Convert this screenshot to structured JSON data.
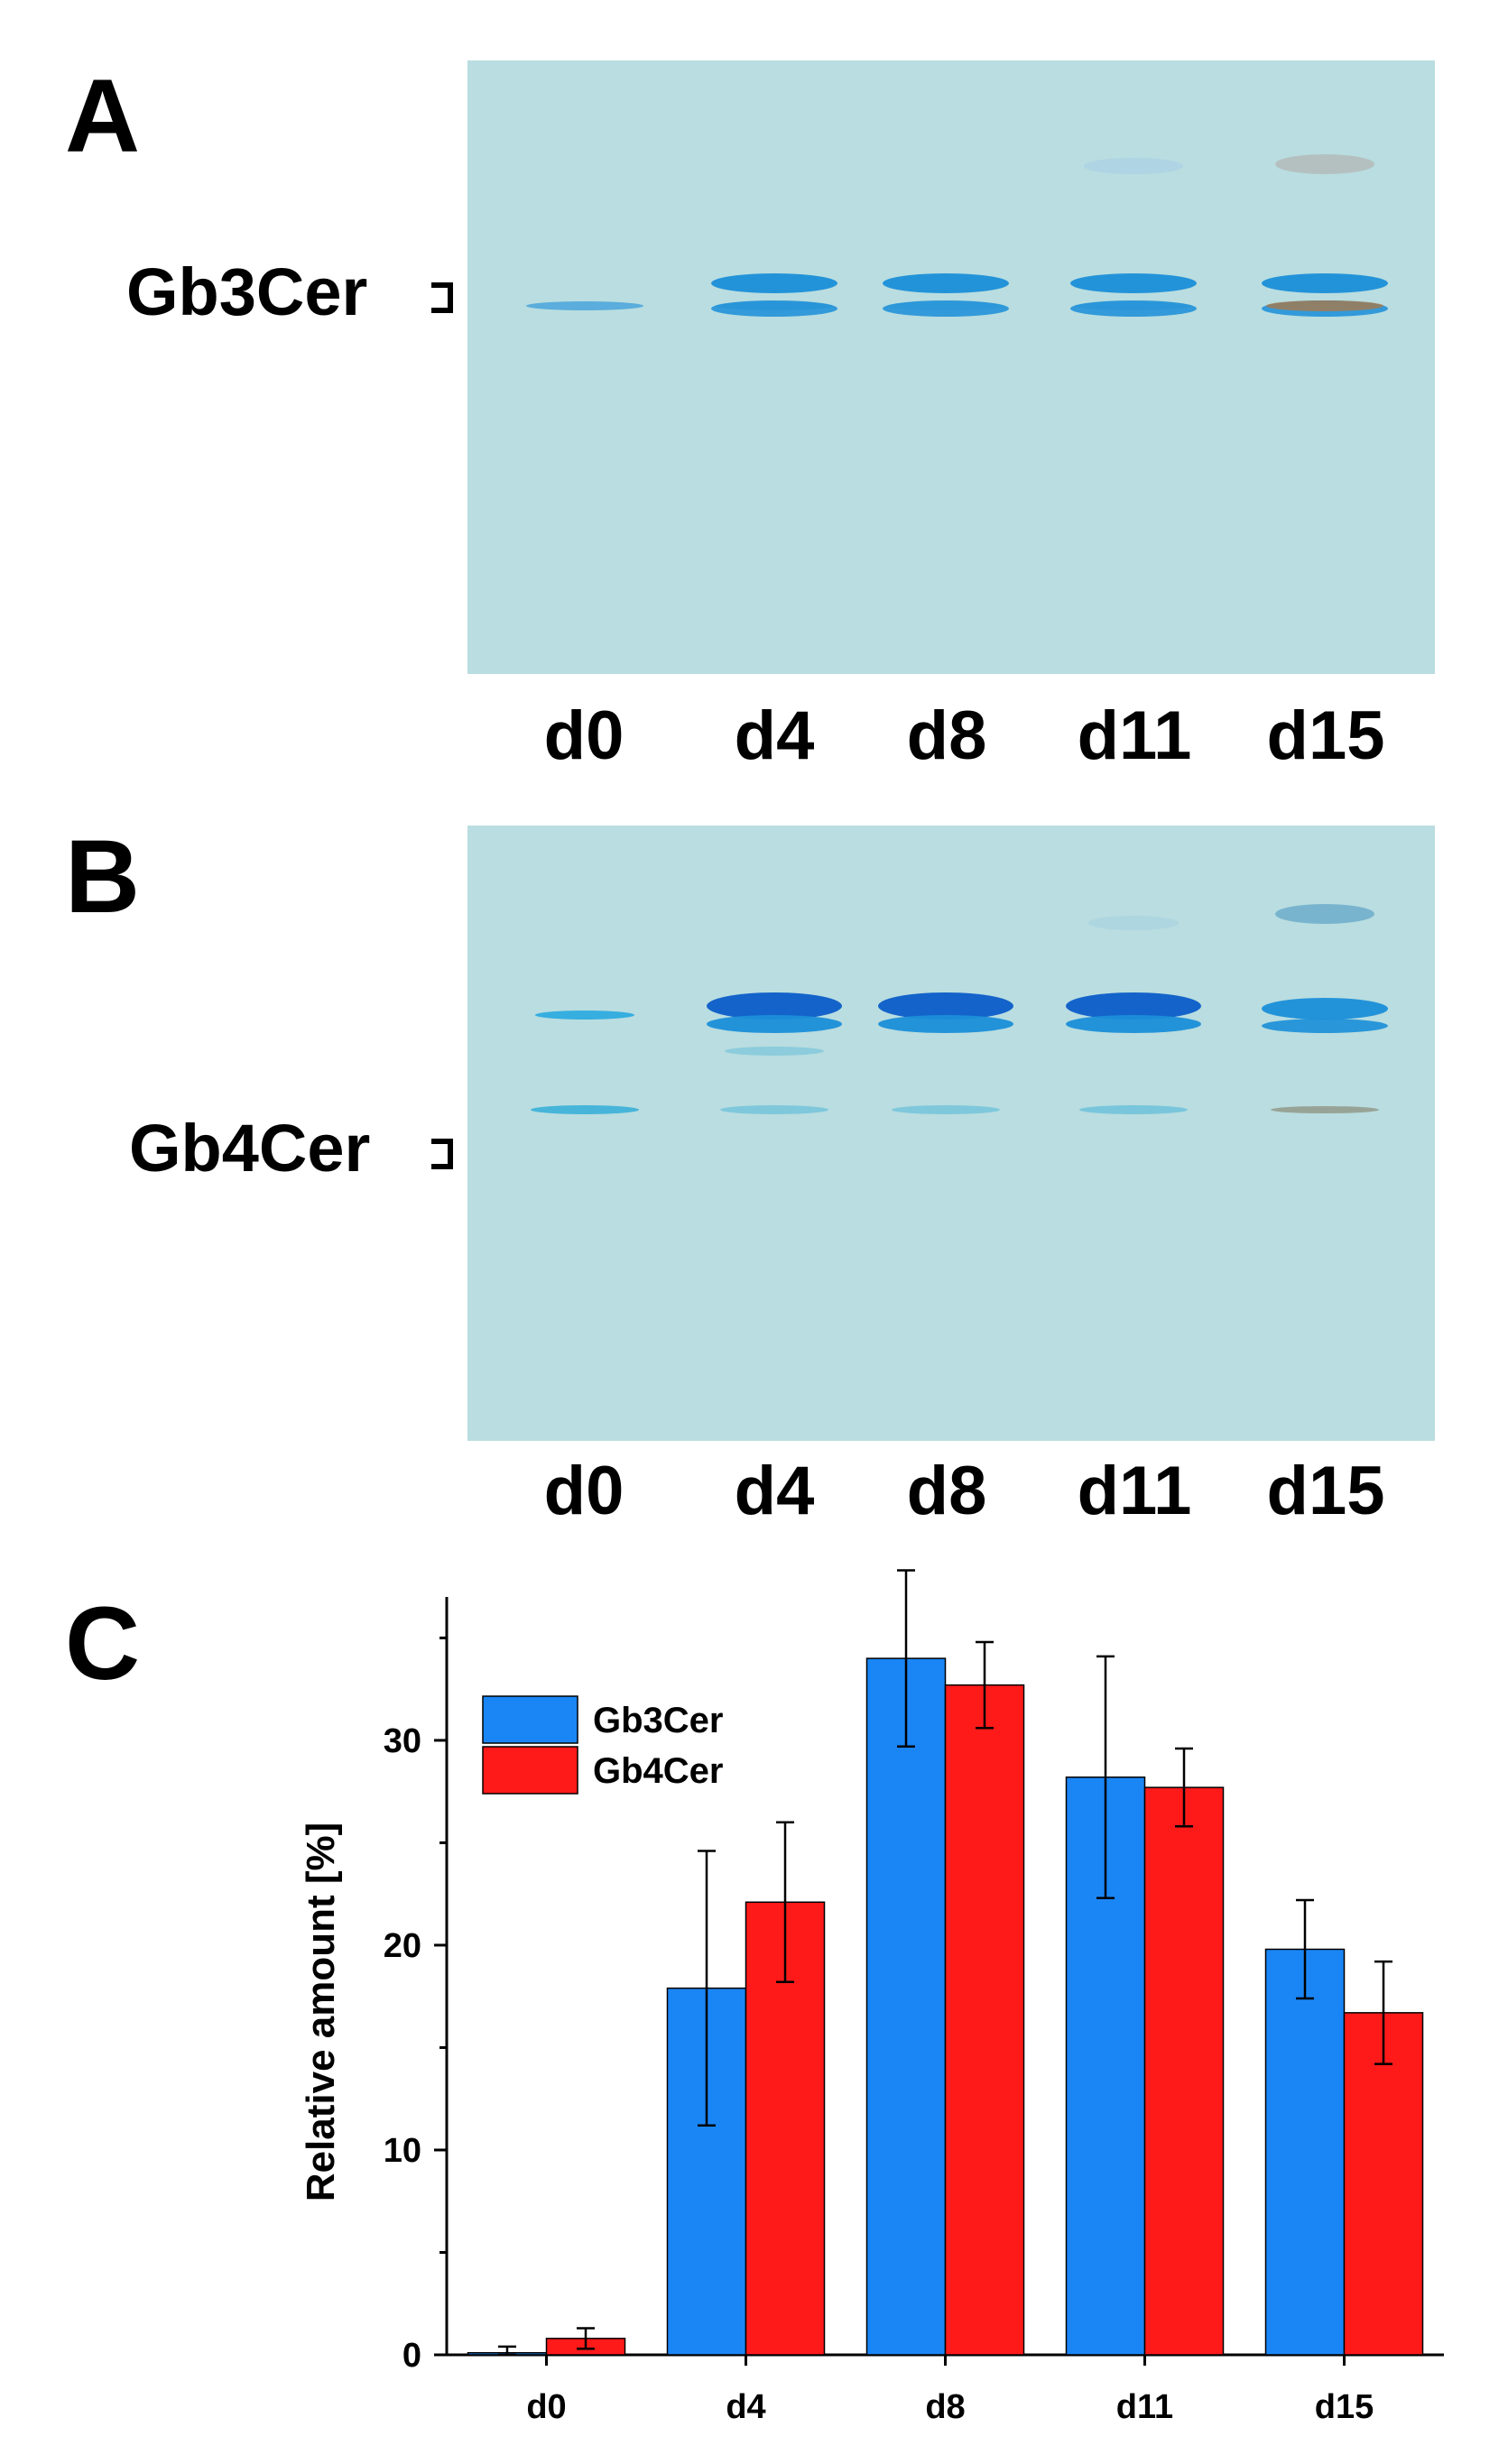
{
  "panels": {
    "a": {
      "letter": "A",
      "band_label": "Gb3Cer",
      "lanes": [
        "d0",
        "d4",
        "d8",
        "d11",
        "d15"
      ]
    },
    "b": {
      "letter": "B",
      "band_label": "Gb4Cer",
      "lanes": [
        "d0",
        "d4",
        "d8",
        "d11",
        "d15"
      ]
    },
    "c": {
      "letter": "C"
    }
  },
  "colors": {
    "gel_background": "#b9dde0",
    "band_blue": "#1a8ed8",
    "band_dark_blue": "#0b5cc8",
    "series_gb3cer": "#1a86f5",
    "series_gb4cer": "#ff1a1a"
  },
  "chart_data": {
    "type": "bar",
    "title": "",
    "xlabel": "",
    "ylabel": "Relative amount [%]",
    "categories": [
      "d0",
      "d4",
      "d8",
      "d11",
      "d15"
    ],
    "ylim": [
      0,
      37
    ],
    "yticks": [
      0,
      10,
      20,
      30
    ],
    "grid": false,
    "legend_position": "top-left",
    "series": [
      {
        "name": "Gb3Cer",
        "values": [
          0.1,
          17.9,
          34.0,
          28.2,
          19.8
        ],
        "errors": [
          0.3,
          6.7,
          4.3,
          5.9,
          2.4
        ],
        "color": "#1a86f5"
      },
      {
        "name": "Gb4Cer",
        "values": [
          0.8,
          22.1,
          32.7,
          27.7,
          16.7
        ],
        "errors": [
          0.5,
          3.9,
          2.1,
          1.9,
          2.5
        ],
        "color": "#ff1a1a"
      }
    ]
  }
}
